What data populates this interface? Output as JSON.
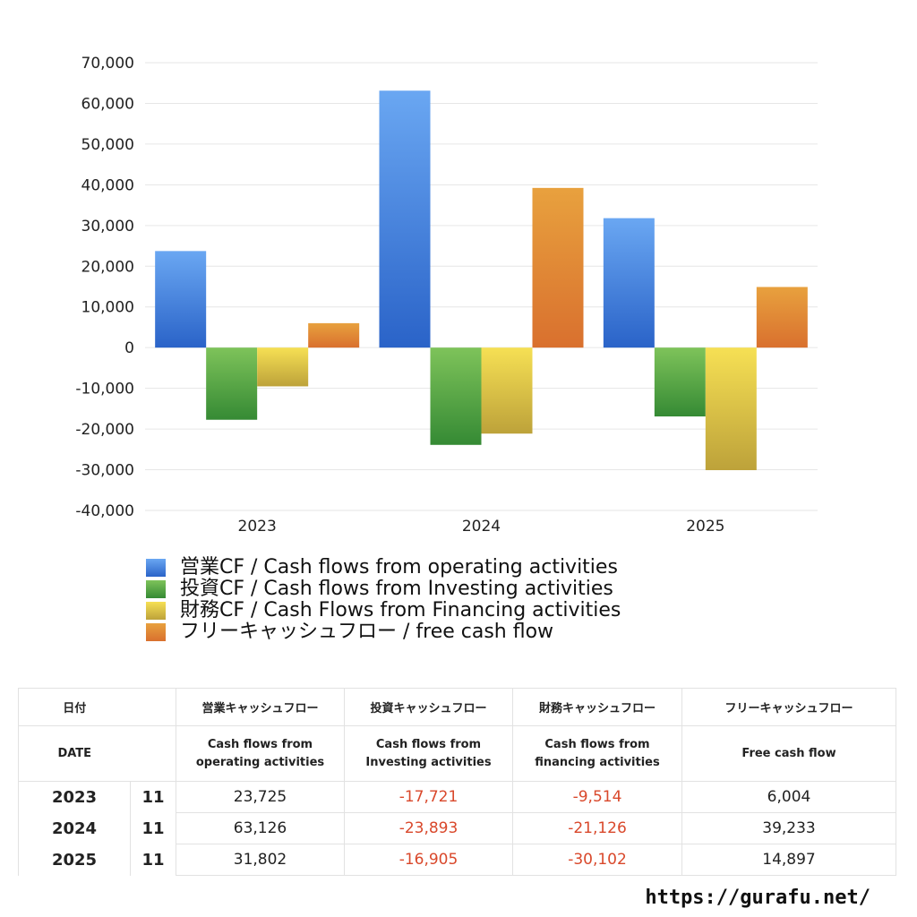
{
  "chart_data": {
    "type": "bar",
    "categories": [
      "2023",
      "2024",
      "2025"
    ],
    "ylim": [
      -40000,
      70000
    ],
    "yticks": [
      70000,
      60000,
      50000,
      40000,
      30000,
      20000,
      10000,
      0,
      -10000,
      -20000,
      -30000,
      -40000
    ],
    "ytick_labels": [
      "70,000",
      "60,000",
      "50,000",
      "40,000",
      "30,000",
      "20,000",
      "10,000",
      "0",
      "-10,000",
      "-20,000",
      "-30,000",
      "-40,000"
    ],
    "grid": true,
    "legend_position": "bottom",
    "series": [
      {
        "name": "営業CF / Cash flows from operating activities",
        "values": [
          23725,
          63126,
          31802
        ],
        "color_top": "#6aa7f2",
        "color_bottom": "#2a63c8"
      },
      {
        "name": "投資CF / Cash flows from Investing activities",
        "values": [
          -17721,
          -23893,
          -16905
        ],
        "color_top": "#7ec35a",
        "color_bottom": "#358a34"
      },
      {
        "name": "財務CF / Cash Flows from Financing activities",
        "values": [
          -9514,
          -21126,
          -30102
        ],
        "color_top": "#f6e054",
        "color_bottom": "#bda23a"
      },
      {
        "name": "フリーキャッシュフロー / free cash flow",
        "values": [
          6004,
          39233,
          14897
        ],
        "color_top": "#e8a13e",
        "color_bottom": "#d9702e"
      }
    ]
  },
  "table": {
    "headers_jp": [
      "日付",
      "営業キャッシュフロー",
      "投資キャッシュフロー",
      "財務キャッシュフロー",
      "フリーキャッシュフロー"
    ],
    "headers_en": {
      "date": "DATE",
      "operating": [
        "Cash flows from",
        "operating activities"
      ],
      "investing": [
        "Cash flows from",
        "Investing activities"
      ],
      "financing": [
        "Cash flows from",
        "financing activities"
      ],
      "free": [
        "Free cash flow"
      ]
    },
    "rows": [
      {
        "year": "2023",
        "month": "11",
        "operating": "23,725",
        "investing": "-17,721",
        "financing": "-9,514",
        "free": "6,004"
      },
      {
        "year": "2024",
        "month": "11",
        "operating": "63,126",
        "investing": "-23,893",
        "financing": "-21,126",
        "free": "39,233"
      },
      {
        "year": "2025",
        "month": "11",
        "operating": "31,802",
        "investing": "-16,905",
        "financing": "-30,102",
        "free": "14,897"
      }
    ]
  },
  "footer": {
    "url": "https://gurafu.net/"
  }
}
